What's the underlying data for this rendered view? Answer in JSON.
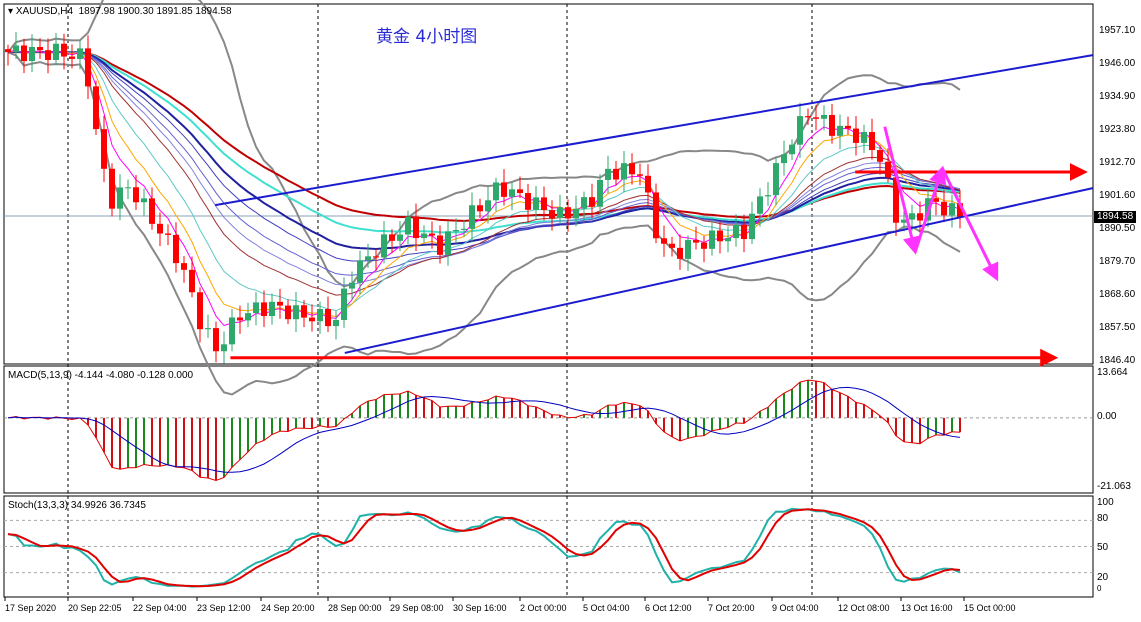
{
  "header": {
    "symbol_label": "XAUUSD,H4",
    "ohlc": "1897.98 1900.30 1891.85 1894.58"
  },
  "annotation_title": "黄金  4小时图",
  "current_price": "1894.58",
  "price_axis": [
    "1957.10",
    "1946.00",
    "1934.90",
    "1923.80",
    "1912.70",
    "1901.60",
    "1890.50",
    "1879.70",
    "1868.60",
    "1857.50",
    "1846.40"
  ],
  "macd": {
    "label": "MACD(5,13,9) -4.144 -4.080 -0.128 0.000",
    "axis": [
      "13.664",
      "0.00",
      "-21.063"
    ],
    "range": [
      -21.063,
      13.664
    ]
  },
  "stoch": {
    "label": "Stoch(13,3,3) 34.9926 36.7345",
    "axis": [
      "100",
      "80",
      "50",
      "20",
      "0"
    ]
  },
  "time_axis": [
    "17 Sep 2020",
    "20 Sep 22:05",
    "22 Sep 04:00",
    "23 Sep 12:00",
    "24 Sep 20:00",
    "28 Sep 00:00",
    "29 Sep 08:00",
    "30 Sep 16:00",
    "2 Oct 00:00",
    "5 Oct 04:00",
    "6 Oct 12:00",
    "7 Oct 20:00",
    "9 Oct 04:00",
    "12 Oct 08:00",
    "13 Oct 16:00",
    "15 Oct 00:00"
  ],
  "colors": {
    "bull": "#2ea86b",
    "bear": "#ff0000",
    "channel": "#1b1bd0",
    "arrow_h": "#ff0000",
    "arrow_m": "#ff33ff"
  },
  "chart_data": {
    "type": "candlestick",
    "bars": 120,
    "ylim": [
      1846.4,
      1957.1
    ],
    "close_anchors": [
      [
        0,
        1950
      ],
      [
        6.5,
        1950
      ],
      [
        9.6,
        1948
      ],
      [
        11.5,
        1915
      ],
      [
        12.75,
        1900
      ],
      [
        15.25,
        1905
      ],
      [
        17.75,
        1895
      ],
      [
        21.5,
        1880
      ],
      [
        24,
        1860
      ],
      [
        26,
        1850
      ],
      [
        29,
        1862
      ],
      [
        32.75,
        1865
      ],
      [
        36.5,
        1862
      ],
      [
        41,
        1860
      ],
      [
        42.75,
        1875
      ],
      [
        46.5,
        1885
      ],
      [
        50,
        1892
      ],
      [
        54,
        1885
      ],
      [
        57.75,
        1895
      ],
      [
        61.5,
        1905
      ],
      [
        65,
        1900
      ],
      [
        69,
        1895
      ],
      [
        72.75,
        1900
      ],
      [
        75,
        1910
      ],
      [
        79,
        1910
      ],
      [
        81,
        1890
      ],
      [
        82.75,
        1882
      ],
      [
        85,
        1885
      ],
      [
        89,
        1888
      ],
      [
        92,
        1890
      ],
      [
        95,
        1905
      ],
      [
        97.75,
        1920
      ],
      [
        100,
        1930
      ],
      [
        102.75,
        1925
      ],
      [
        106.5,
        1922
      ],
      [
        109,
        1915
      ],
      [
        111,
        1895
      ],
      [
        112.75,
        1893
      ],
      [
        115.25,
        1900
      ],
      [
        117.75,
        1897
      ],
      [
        119,
        1894.58
      ]
    ],
    "channel_upper": [
      [
        25.9,
        1898.7
      ],
      [
        135.6,
        1949.0
      ]
    ],
    "channel_lower": [
      [
        42.1,
        1849.1
      ],
      [
        135.6,
        1904.4
      ]
    ],
    "support_line": [
      [
        27.8,
        1847.5
      ],
      [
        130.9,
        1847.5
      ]
    ],
    "resistance_line": [
      [
        105.9,
        1909.8
      ],
      [
        134.6,
        1909.8
      ]
    ],
    "forecast_arrows": [
      [
        [
          109.6,
          1925
        ],
        [
          113.4,
          1883
        ]
      ],
      [
        [
          113.4,
          1883
        ],
        [
          116.8,
          1911
        ]
      ],
      [
        [
          116.8,
          1911
        ],
        [
          123.6,
          1874
        ]
      ]
    ]
  }
}
